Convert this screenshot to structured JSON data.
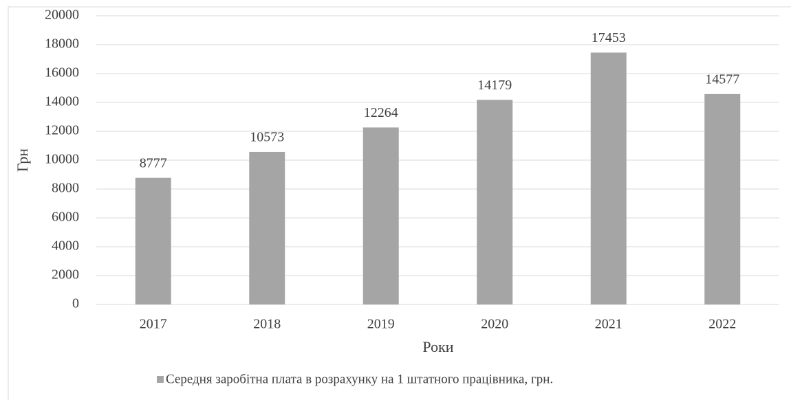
{
  "chart_data": {
    "type": "bar",
    "x_label": "Роки",
    "y_label": "Грн",
    "categories": [
      "2017",
      "2018",
      "2019",
      "2020",
      "2021",
      "2022"
    ],
    "series": [
      {
        "name": "Середня заробітна плата в розрахунку на 1 штатного працівника, грн.",
        "color": "#a5a5a5",
        "values": [
          8777,
          10573,
          12264,
          14179,
          17453,
          14577
        ]
      }
    ],
    "ylim": [
      0,
      20000
    ],
    "yticks": [
      0,
      2000,
      4000,
      6000,
      8000,
      10000,
      12000,
      14000,
      16000,
      18000,
      20000
    ],
    "grid": true,
    "legend": "bottom",
    "data_labels": true
  }
}
